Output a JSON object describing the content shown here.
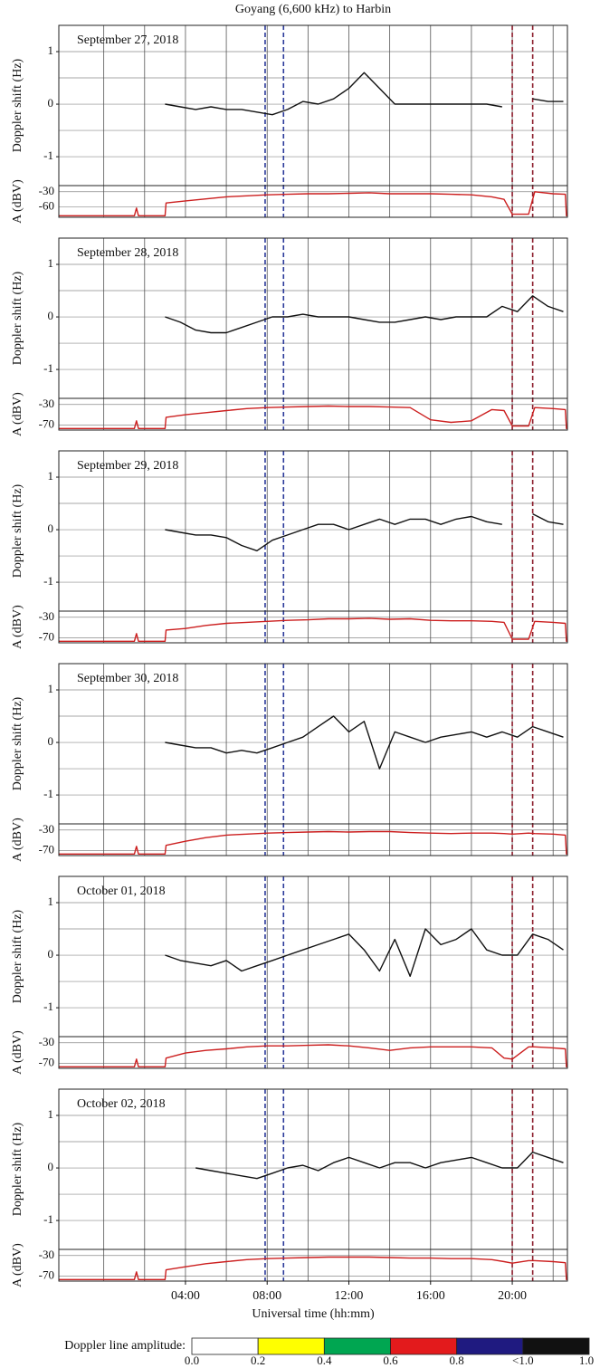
{
  "title": "Goyang (6,600 kHz) to Harbin",
  "xlabel": "Universal time (hh:mm)",
  "xlim": [
    -2.2,
    22.7
  ],
  "xticks": [
    {
      "value": 4,
      "label": "04:00"
    },
    {
      "value": 8,
      "label": "08:00"
    },
    {
      "value": 12,
      "label": "12:00"
    },
    {
      "value": 16,
      "label": "16:00"
    },
    {
      "value": 20,
      "label": "20:00"
    }
  ],
  "xgrid": [
    0,
    2,
    4,
    6,
    8,
    10,
    12,
    14,
    16,
    18,
    20,
    22
  ],
  "markers": [
    {
      "x": 7.9,
      "color": "#2b3a9a"
    },
    {
      "x": 8.8,
      "color": "#2b3a9a"
    },
    {
      "x": 20.0,
      "color": "#8b1a2a"
    },
    {
      "x": 21.0,
      "color": "#8b1a2a"
    }
  ],
  "colorbar": {
    "label": "Doppler line amplitude:",
    "colors": [
      "#ffffff",
      "#ffff00",
      "#00a651",
      "#e31a1c",
      "#1f1a80",
      "#111111"
    ],
    "ticks": [
      "0.0",
      "0.2",
      "0.4",
      "0.6",
      "0.8",
      "<1.0",
      "1.0"
    ]
  },
  "chart_data": [
    {
      "type": "line",
      "annotation": "September 27, 2018",
      "doppler": {
        "ylabel": "Doppler shift (Hz)",
        "ylim": [
          -1.55,
          1.5
        ],
        "yticks": [
          -1,
          0,
          1
        ],
        "ygrid": [
          -1,
          -0.5,
          0,
          0.5,
          1
        ],
        "color": "#111111",
        "x": [
          3,
          3.75,
          4.5,
          5.25,
          6,
          6.75,
          7.5,
          8.25,
          9,
          9.75,
          10.5,
          11.25,
          12,
          12.75,
          13.5,
          14.25,
          15,
          15.75,
          16.5,
          17.25,
          18,
          18.75,
          19.5,
          20.25,
          21,
          21.75,
          22.5
        ],
        "values": [
          0.0,
          -0.05,
          -0.1,
          -0.05,
          -0.1,
          -0.1,
          -0.15,
          -0.2,
          -0.1,
          0.05,
          0.0,
          0.1,
          0.3,
          0.6,
          0.3,
          0.0,
          0.0,
          0.0,
          0.0,
          0.0,
          0.0,
          0.0,
          -0.05,
          null,
          0.1,
          0.05,
          0.05
        ]
      },
      "amplitude": {
        "ylabel": "A (dBV)",
        "ylim": [
          -80,
          -18
        ],
        "yticks": [
          -60,
          -30
        ],
        "color": "#cc1f1f",
        "x": [
          -2.2,
          1.5,
          1.6,
          1.7,
          3.0,
          3.05,
          4,
          5,
          6,
          7,
          8,
          9,
          10,
          11,
          12,
          13,
          14,
          15,
          16,
          17,
          18,
          19,
          19.6,
          20,
          20.8,
          21.1,
          22,
          22.6,
          22.65,
          22.7
        ],
        "values": [
          -77,
          -77,
          -62,
          -77,
          -77,
          -52,
          -48,
          -44,
          -40,
          -38,
          -36,
          -35,
          -34,
          -34,
          -33,
          -32,
          -34,
          -34,
          -34,
          -35,
          -36,
          -40,
          -45,
          -74,
          -74,
          -30,
          -34,
          -35,
          -77,
          -77
        ]
      }
    },
    {
      "type": "line",
      "annotation": "September 28, 2018",
      "doppler": {
        "ylabel": "Doppler shift (Hz)",
        "ylim": [
          -1.55,
          1.5
        ],
        "yticks": [
          -1,
          0,
          1
        ],
        "ygrid": [
          -1,
          -0.5,
          0,
          0.5,
          1
        ],
        "color": "#111111",
        "x": [
          3,
          3.75,
          4.5,
          5.25,
          6,
          6.75,
          7.5,
          8.25,
          9,
          9.75,
          10.5,
          11.25,
          12,
          12.75,
          13.5,
          14.25,
          15,
          15.75,
          16.5,
          17.25,
          18,
          18.75,
          19.5,
          20.25,
          21,
          21.75,
          22.5
        ],
        "values": [
          0,
          -0.1,
          -0.25,
          -0.3,
          -0.3,
          -0.2,
          -0.1,
          0,
          0,
          0.05,
          0,
          0,
          0,
          -0.05,
          -0.1,
          -0.1,
          -0.05,
          0,
          -0.05,
          0,
          0,
          0,
          0.2,
          0.1,
          0.4,
          0.2,
          0.1
        ]
      },
      "amplitude": {
        "ylabel": "A (dBV)",
        "ylim": [
          -80,
          -18
        ],
        "yticks": [
          -70,
          -30
        ],
        "color": "#cc1f1f",
        "x": [
          -2.2,
          1.5,
          1.6,
          1.7,
          3.0,
          3.05,
          4,
          5,
          6,
          7,
          8,
          9,
          10,
          11,
          12,
          13,
          14,
          15,
          16,
          17,
          18,
          19,
          19.6,
          20,
          20.8,
          21.1,
          22,
          22.6,
          22.65,
          22.7
        ],
        "values": [
          -77,
          -77,
          -62,
          -77,
          -77,
          -55,
          -50,
          -46,
          -42,
          -38,
          -36,
          -35,
          -34,
          -33,
          -34,
          -34,
          -35,
          -36,
          -60,
          -65,
          -62,
          -40,
          -42,
          -72,
          -72,
          -36,
          -38,
          -40,
          -77,
          -77
        ]
      }
    },
    {
      "type": "line",
      "annotation": "September 29, 2018",
      "doppler": {
        "ylabel": "Doppler shift (Hz)",
        "ylim": [
          -1.55,
          1.5
        ],
        "yticks": [
          -1,
          0,
          1
        ],
        "ygrid": [
          -1,
          -0.5,
          0,
          0.5,
          1
        ],
        "color": "#111111",
        "x": [
          3,
          3.75,
          4.5,
          5.25,
          6,
          6.75,
          7.5,
          8.25,
          9,
          9.75,
          10.5,
          11.25,
          12,
          12.75,
          13.5,
          14.25,
          15,
          15.75,
          16.5,
          17.25,
          18,
          18.75,
          19.5,
          20.25,
          21,
          21.75,
          22.5
        ],
        "values": [
          0,
          -0.05,
          -0.1,
          -0.1,
          -0.15,
          -0.3,
          -0.4,
          -0.2,
          -0.1,
          0,
          0.1,
          0.1,
          0.0,
          0.1,
          0.2,
          0.1,
          0.2,
          0.2,
          0.1,
          0.2,
          0.25,
          0.15,
          0.1,
          null,
          0.3,
          0.15,
          0.1
        ]
      },
      "amplitude": {
        "ylabel": "A (dBV)",
        "ylim": [
          -80,
          -18
        ],
        "yticks": [
          -70,
          -30
        ],
        "color": "#cc1f1f",
        "x": [
          -2.2,
          1.5,
          1.6,
          1.7,
          3.0,
          3.05,
          4,
          5,
          6,
          7,
          8,
          9,
          10,
          11,
          12,
          13,
          14,
          15,
          16,
          17,
          18,
          19,
          19.6,
          20,
          20.8,
          21.1,
          22,
          22.6,
          22.65,
          22.7
        ],
        "values": [
          -77,
          -77,
          -62,
          -77,
          -77,
          -55,
          -52,
          -46,
          -42,
          -40,
          -38,
          -36,
          -35,
          -33,
          -33,
          -32,
          -34,
          -33,
          -36,
          -37,
          -37,
          -38,
          -40,
          -73,
          -73,
          -38,
          -40,
          -42,
          -77,
          -77
        ]
      }
    },
    {
      "type": "line",
      "annotation": "September 30, 2018",
      "doppler": {
        "ylabel": "Doppler shift (Hz)",
        "ylim": [
          -1.55,
          1.5
        ],
        "yticks": [
          -1,
          0,
          1
        ],
        "ygrid": [
          -1,
          -0.5,
          0,
          0.5,
          1
        ],
        "color": "#111111",
        "x": [
          3,
          3.75,
          4.5,
          5.25,
          6,
          6.75,
          7.5,
          8.25,
          9,
          9.75,
          10.5,
          11.25,
          12,
          12.75,
          13.5,
          14.25,
          15,
          15.75,
          16.5,
          17.25,
          18,
          18.75,
          19.5,
          20.25,
          21,
          21.75,
          22.5
        ],
        "values": [
          0,
          -0.05,
          -0.1,
          -0.1,
          -0.2,
          -0.15,
          -0.2,
          -0.1,
          0.0,
          0.1,
          0.3,
          0.5,
          0.2,
          0.4,
          -0.5,
          0.2,
          0.1,
          0.0,
          0.1,
          0.15,
          0.2,
          0.1,
          0.2,
          0.1,
          0.3,
          0.2,
          0.1
        ]
      },
      "amplitude": {
        "ylabel": "A (dBV)",
        "ylim": [
          -80,
          -18
        ],
        "yticks": [
          -70,
          -30
        ],
        "color": "#cc1f1f",
        "x": [
          -2.2,
          1.5,
          1.6,
          1.7,
          3.0,
          3.05,
          4,
          5,
          6,
          7,
          8,
          9,
          10,
          11,
          12,
          13,
          14,
          15,
          16,
          17,
          18,
          19,
          19.6,
          20,
          20.8,
          21.1,
          22,
          22.6,
          22.65,
          22.7
        ],
        "values": [
          -77,
          -77,
          -62,
          -77,
          -77,
          -60,
          -52,
          -45,
          -40,
          -38,
          -36,
          -35,
          -34,
          -33,
          -34,
          -33,
          -33,
          -35,
          -36,
          -37,
          -36,
          -36,
          -37,
          -38,
          -36,
          -37,
          -38,
          -40,
          -77,
          -77
        ]
      }
    },
    {
      "type": "line",
      "annotation": "October 01, 2018",
      "doppler": {
        "ylabel": "Doppler shift (Hz)",
        "ylim": [
          -1.55,
          1.5
        ],
        "yticks": [
          -1,
          0,
          1
        ],
        "ygrid": [
          -1,
          -0.5,
          0,
          0.5,
          1
        ],
        "color": "#111111",
        "x": [
          3,
          3.75,
          4.5,
          5.25,
          6,
          6.75,
          7.5,
          8.25,
          9,
          9.75,
          10.5,
          11.25,
          12,
          12.75,
          13.5,
          14.25,
          15,
          15.75,
          16.5,
          17.25,
          18,
          18.75,
          19.5,
          20.25,
          21,
          21.75,
          22.5
        ],
        "values": [
          0,
          -0.1,
          -0.15,
          -0.2,
          -0.1,
          -0.3,
          -0.2,
          -0.1,
          0,
          0.1,
          0.2,
          0.3,
          0.4,
          0.1,
          -0.3,
          0.3,
          -0.4,
          0.5,
          0.2,
          0.3,
          0.5,
          0.1,
          0,
          0,
          0.4,
          0.3,
          0.1
        ]
      },
      "amplitude": {
        "ylabel": "A (dBV)",
        "ylim": [
          -80,
          -18
        ],
        "yticks": [
          -70,
          -30
        ],
        "color": "#cc1f1f",
        "x": [
          -2.2,
          1.5,
          1.6,
          1.7,
          3.0,
          3.05,
          4,
          5,
          6,
          7,
          8,
          9,
          10,
          11,
          12,
          13,
          14,
          15,
          16,
          17,
          18,
          19,
          19.6,
          20,
          20.8,
          21.1,
          22,
          22.6,
          22.65,
          22.7
        ],
        "values": [
          -77,
          -77,
          -62,
          -77,
          -77,
          -60,
          -50,
          -45,
          -42,
          -38,
          -36,
          -36,
          -35,
          -34,
          -36,
          -40,
          -45,
          -40,
          -38,
          -38,
          -38,
          -40,
          -60,
          -62,
          -38,
          -38,
          -40,
          -42,
          -77,
          -77
        ]
      }
    },
    {
      "type": "line",
      "annotation": "October 02, 2018",
      "doppler": {
        "ylabel": "Doppler shift (Hz)",
        "ylim": [
          -1.55,
          1.5
        ],
        "yticks": [
          -1,
          0,
          1
        ],
        "ygrid": [
          -1,
          -0.5,
          0,
          0.5,
          1
        ],
        "color": "#111111",
        "x": [
          3,
          3.75,
          4.5,
          5.25,
          6,
          6.75,
          7.5,
          8.25,
          9,
          9.75,
          10.5,
          11.25,
          12,
          12.75,
          13.5,
          14.25,
          15,
          15.75,
          16.5,
          17.25,
          18,
          18.75,
          19.5,
          20.25,
          21,
          21.75,
          22.5
        ],
        "values": [
          null,
          null,
          0,
          -0.05,
          -0.1,
          -0.15,
          -0.2,
          -0.1,
          0,
          0.05,
          -0.05,
          0.1,
          0.2,
          0.1,
          0.0,
          0.1,
          0.1,
          0.0,
          0.1,
          0.15,
          0.2,
          0.1,
          0,
          0,
          0.3,
          0.2,
          0.1
        ]
      },
      "amplitude": {
        "ylabel": "A (dBV)",
        "ylim": [
          -80,
          -18
        ],
        "yticks": [
          -70,
          -30
        ],
        "color": "#cc1f1f",
        "x": [
          -2.2,
          1.5,
          1.6,
          1.7,
          3.0,
          3.05,
          4,
          5,
          6,
          7,
          8,
          9,
          10,
          11,
          12,
          13,
          14,
          15,
          16,
          17,
          18,
          19,
          19.6,
          20,
          20.8,
          21.1,
          22,
          22.6,
          22.65,
          22.7
        ],
        "values": [
          -77,
          -77,
          -62,
          -77,
          -77,
          -58,
          -52,
          -46,
          -42,
          -38,
          -36,
          -35,
          -34,
          -33,
          -33,
          -33,
          -34,
          -35,
          -35,
          -36,
          -36,
          -38,
          -42,
          -45,
          -40,
          -40,
          -42,
          -44,
          -77,
          -77
        ]
      }
    }
  ]
}
